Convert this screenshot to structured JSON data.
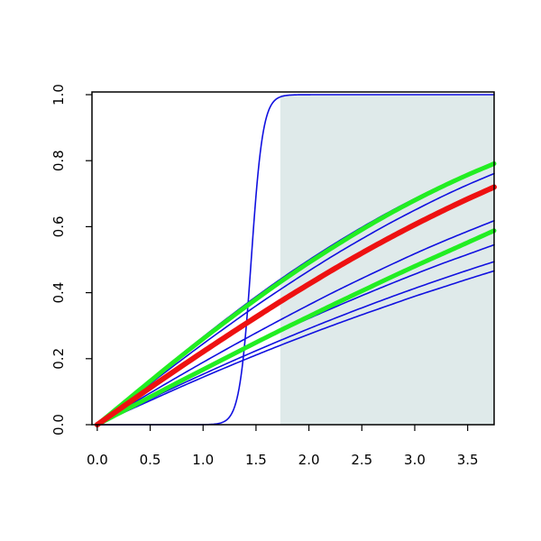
{
  "chart_data": {
    "type": "line",
    "title": "",
    "xlabel": "",
    "ylabel": "",
    "xlim": [
      -0.05,
      3.75
    ],
    "ylim": [
      0,
      1
    ],
    "x_ticks": [
      "0.0",
      "0.5",
      "1.0",
      "1.5",
      "2.0",
      "2.5",
      "3.0",
      "3.5"
    ],
    "y_ticks": [
      "0.0",
      "0.2",
      "0.4",
      "0.6",
      "0.8",
      "1.0"
    ],
    "grid": false,
    "legend": "none",
    "shaded_region": {
      "x_start": 1.73,
      "x_end": 3.75,
      "y_start": 0,
      "y_end": 1,
      "color": "#dfeaea"
    },
    "x": [
      0,
      0.25,
      0.5,
      0.75,
      1.0,
      1.25,
      1.5,
      1.75,
      2.0,
      2.25,
      2.5,
      2.75,
      3.0,
      3.25,
      3.5,
      3.75
    ],
    "series": [
      {
        "color": "#1010e0",
        "width": 1.6,
        "values": [
          0,
          0.068,
          0.136,
          0.202,
          0.266,
          0.328,
          0.388,
          0.445,
          0.499,
          0.55,
          0.598,
          0.643,
          0.685,
          0.724,
          0.76,
          0.793
        ]
      },
      {
        "color": "#1010e0",
        "width": 1.6,
        "values": [
          0,
          0.062,
          0.124,
          0.185,
          0.245,
          0.303,
          0.36,
          0.414,
          0.466,
          0.516,
          0.563,
          0.608,
          0.65,
          0.69,
          0.727,
          0.761
        ]
      },
      {
        "color": "#1010e0",
        "width": 1.6,
        "values": [
          0,
          0.055,
          0.11,
          0.164,
          0.218,
          0.271,
          0.323,
          0.374,
          0.423,
          0.471,
          0.517,
          0.561,
          0.603,
          0.643,
          0.681,
          0.717
        ]
      },
      {
        "color": "#1010e0",
        "width": 1.6,
        "values": [
          0,
          0.048,
          0.096,
          0.143,
          0.189,
          0.234,
          0.278,
          0.321,
          0.363,
          0.404,
          0.443,
          0.481,
          0.518,
          0.553,
          0.586,
          0.618
        ]
      },
      {
        "color": "#1010e0",
        "width": 1.6,
        "values": [
          0,
          0.043,
          0.086,
          0.128,
          0.169,
          0.209,
          0.248,
          0.286,
          0.322,
          0.357,
          0.391,
          0.424,
          0.456,
          0.487,
          0.516,
          0.545
        ]
      },
      {
        "color": "#1010e0",
        "width": 1.6,
        "values": [
          0,
          0.039,
          0.078,
          0.116,
          0.153,
          0.189,
          0.224,
          0.258,
          0.291,
          0.323,
          0.354,
          0.384,
          0.413,
          0.441,
          0.468,
          0.494
        ]
      },
      {
        "color": "#1010e0",
        "width": 1.6,
        "values": [
          0,
          0.037,
          0.073,
          0.109,
          0.144,
          0.178,
          0.211,
          0.243,
          0.274,
          0.304,
          0.333,
          0.361,
          0.389,
          0.415,
          0.441,
          0.466
        ]
      },
      {
        "color": "#1010e0",
        "width": 1.6,
        "values": [
          0,
          0.0,
          0.0,
          0.0,
          0.0,
          0.002,
          0.5,
          0.995,
          1.0,
          1.0,
          1.0,
          1.0,
          1.0,
          1.0,
          1.0,
          1.0
        ],
        "sigmoid": {
          "center": 1.455,
          "scale": 0.055
        }
      },
      {
        "color": "#22ee22",
        "width": 5,
        "values": [
          0,
          0.066,
          0.132,
          0.197,
          0.26,
          0.321,
          0.38,
          0.437,
          0.491,
          0.542,
          0.591,
          0.637,
          0.68,
          0.72,
          0.757,
          0.791
        ]
      },
      {
        "color": "#22ee22",
        "width": 5,
        "values": [
          0,
          0.042,
          0.084,
          0.126,
          0.167,
          0.208,
          0.249,
          0.289,
          0.328,
          0.367,
          0.405,
          0.443,
          0.48,
          0.516,
          0.552,
          0.588
        ]
      },
      {
        "color": "#ee1111",
        "width": 6,
        "values": [
          0,
          0.056,
          0.112,
          0.167,
          0.221,
          0.274,
          0.326,
          0.377,
          0.426,
          0.474,
          0.52,
          0.564,
          0.606,
          0.646,
          0.684,
          0.72
        ]
      }
    ]
  }
}
